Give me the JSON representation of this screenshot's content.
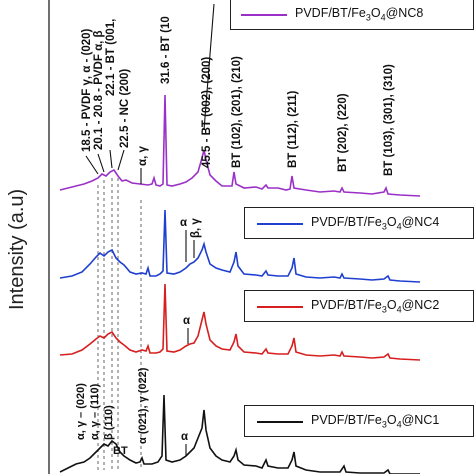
{
  "chart_data": {
    "type": "line",
    "title": "",
    "ylabel": "Intensity (a.u)",
    "xlabel": "",
    "series": [
      {
        "name": "PVDF/BT/Fe3O4@NC8",
        "legend_pre": "PVDF/BT/Fe",
        "legend_sub": "3",
        "legend_mid": "O",
        "legend_sub2": "4",
        "legend_post": "@NC8",
        "color": "#9b30c8"
      },
      {
        "name": "PVDF/BT/Fe3O4@NC4",
        "legend_pre": "PVDF/BT/Fe",
        "legend_sub": "3",
        "legend_mid": "O",
        "legend_sub2": "4",
        "legend_post": "@NC4",
        "color": "#1f3fd0"
      },
      {
        "name": "PVDF/BT/Fe3O4@NC2",
        "legend_pre": "PVDF/BT/Fe",
        "legend_sub": "3",
        "legend_mid": "O",
        "legend_sub2": "4",
        "legend_post": "@NC2",
        "color": "#d81f1f"
      },
      {
        "name": "PVDF/BT/Fe3O4@NC1",
        "legend_pre": "PVDF/BT/Fe",
        "legend_sub": "3",
        "legend_mid": "O",
        "legend_sub2": "4",
        "legend_post": "@NC1",
        "color": "#111111"
      }
    ],
    "annotations_top": [
      "18.5 - PVDF γ, α - (020)",
      "20.1 - 20.8 - PVDF α, β",
      "22.1 - BT (001,",
      "22.5 - NC (200)",
      "31.6 - BT (10",
      "45.5 - BT (002), (200)",
      "BT (102), (201), (210)",
      "BT (112), (211)",
      "BT (202), (220)",
      "BT (103), (301), (310)"
    ],
    "peak_labels": {
      "nc8_alpha_gamma": "α, γ",
      "nc4_alpha": "α",
      "nc4_beta_gamma": "β, γ",
      "nc2_alpha": "α",
      "nc1_alpha": "α",
      "nc1_020": "α, γ – (020)",
      "nc1_110": "α, γ – (110)",
      "nc1_beta110": "β (110)",
      "nc1_bt": "BT",
      "nc1_021": "α (021), γ (022)"
    }
  }
}
